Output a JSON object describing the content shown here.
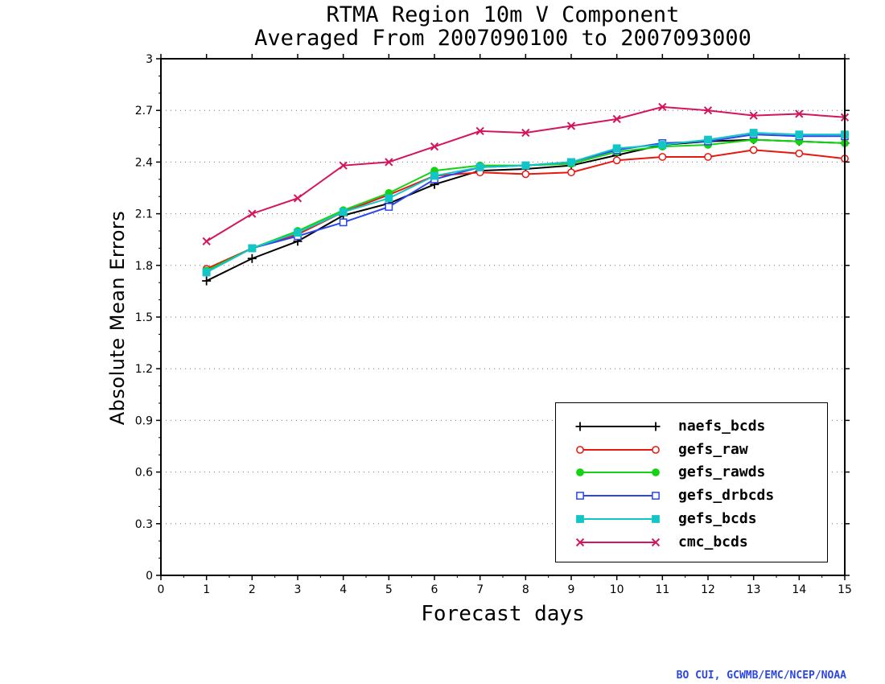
{
  "chart_data": {
    "type": "line",
    "title": "RTMA Region 10m V Component",
    "subtitle": "Averaged From 2007090100 to 2007093000",
    "xlabel": "Forecast days",
    "ylabel": "Absolute Mean Errors",
    "xlim": [
      0,
      15
    ],
    "ylim": [
      0,
      3
    ],
    "xticks": [
      "0",
      "1",
      "2",
      "3",
      "4",
      "5",
      "6",
      "7",
      "8",
      "9",
      "10",
      "11",
      "12",
      "13",
      "14",
      "15"
    ],
    "yticks": [
      "0",
      "0.3",
      "0.6",
      "0.9",
      "1.2",
      "1.5",
      "1.8",
      "2.1",
      "2.4",
      "2.7",
      "3"
    ],
    "grid": "horizontal-dotted",
    "legend_position": "bottom-right",
    "x": [
      1,
      2,
      3,
      4,
      5,
      6,
      7,
      8,
      9,
      10,
      11,
      12,
      13,
      14,
      15
    ],
    "series": [
      {
        "name": "naefs_bcds",
        "color": "#000000",
        "marker": "plus",
        "values": [
          1.71,
          1.84,
          1.94,
          2.09,
          2.16,
          2.27,
          2.35,
          2.36,
          2.38,
          2.44,
          2.5,
          2.52,
          2.53,
          2.52,
          2.51
        ]
      },
      {
        "name": "gefs_raw",
        "color": "#e8170f",
        "marker": "open-circle",
        "values": [
          1.78,
          1.9,
          1.98,
          2.11,
          2.21,
          2.32,
          2.34,
          2.33,
          2.34,
          2.41,
          2.43,
          2.43,
          2.47,
          2.45,
          2.42
        ]
      },
      {
        "name": "gefs_rawds",
        "color": "#13d313",
        "marker": "filled-circle",
        "values": [
          1.77,
          1.9,
          2.0,
          2.12,
          2.22,
          2.35,
          2.38,
          2.38,
          2.39,
          2.46,
          2.49,
          2.5,
          2.53,
          2.52,
          2.51
        ]
      },
      {
        "name": "gefs_drbcds",
        "color": "#2a46e8",
        "marker": "open-square",
        "values": [
          1.76,
          1.9,
          1.97,
          2.05,
          2.14,
          2.3,
          2.37,
          2.38,
          2.4,
          2.47,
          2.51,
          2.52,
          2.56,
          2.55,
          2.55
        ]
      },
      {
        "name": "gefs_bcds",
        "color": "#12c6c6",
        "marker": "filled-square",
        "values": [
          1.76,
          1.9,
          1.99,
          2.11,
          2.19,
          2.32,
          2.37,
          2.38,
          2.4,
          2.48,
          2.5,
          2.53,
          2.57,
          2.56,
          2.56
        ]
      },
      {
        "name": "cmc_bcds",
        "color": "#d4145c",
        "marker": "x",
        "values": [
          1.94,
          2.1,
          2.19,
          2.38,
          2.4,
          2.49,
          2.58,
          2.57,
          2.61,
          2.65,
          2.72,
          2.7,
          2.67,
          2.68,
          2.66
        ]
      }
    ]
  },
  "credit": "BO CUI, GCWMB/EMC/NCEP/NOAA"
}
